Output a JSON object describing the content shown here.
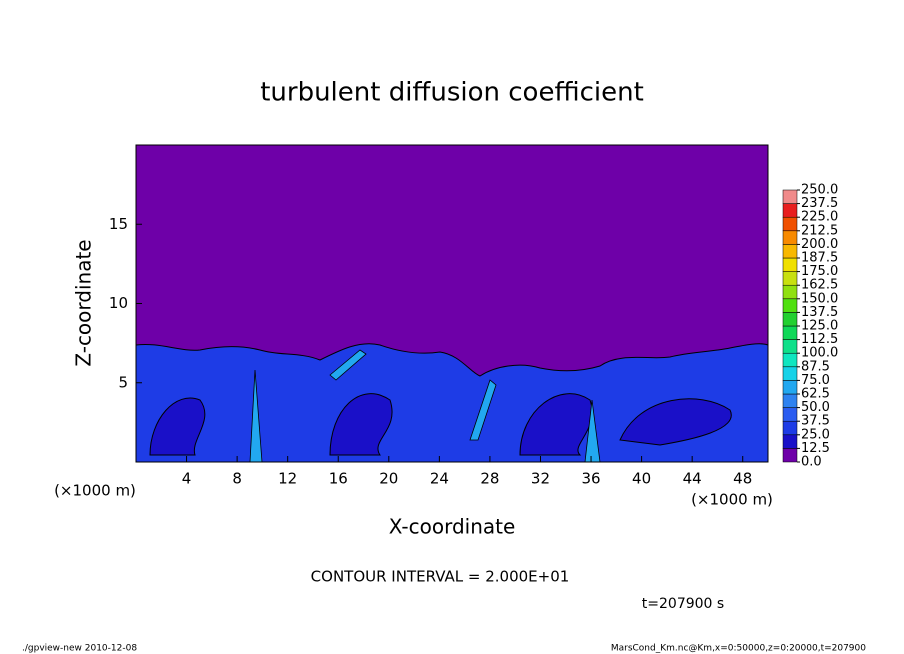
{
  "chart_data": {
    "type": "contour",
    "title": "turbulent diffusion coefficient",
    "x_label": "X-coordinate",
    "y_label": "Z-coordinate",
    "x_units": [
      "(×1000 m)",
      "(×1000 m)"
    ],
    "xlim": [
      0,
      50
    ],
    "xticks": [
      4,
      8,
      12,
      16,
      20,
      24,
      28,
      32,
      36,
      40,
      44,
      48
    ],
    "ylim": [
      0,
      20
    ],
    "yticks": [
      5,
      10,
      15
    ],
    "colorbar": {
      "levels": [
        {
          "value": 0,
          "label": "0.0"
        },
        {
          "value": 12.5,
          "label": "12.5"
        },
        {
          "value": 25,
          "label": "25.0"
        },
        {
          "value": 37.5,
          "label": "37.5"
        },
        {
          "value": 50,
          "label": "50.0"
        },
        {
          "value": 62.5,
          "label": "62.5"
        },
        {
          "value": 75,
          "label": "75.0"
        },
        {
          "value": 87.5,
          "label": "87.5"
        },
        {
          "value": 100,
          "label": "100.0"
        },
        {
          "value": 112.5,
          "label": "112.5"
        },
        {
          "value": 125,
          "label": "125.0"
        },
        {
          "value": 137.5,
          "label": "137.5"
        },
        {
          "value": 150,
          "label": "150.0"
        },
        {
          "value": 162.5,
          "label": "162.5"
        },
        {
          "value": 175,
          "label": "175.0"
        },
        {
          "value": 187.5,
          "label": "187.5"
        },
        {
          "value": 200,
          "label": "200.0"
        },
        {
          "value": 212.5,
          "label": "212.5"
        },
        {
          "value": 225,
          "label": "225.0"
        },
        {
          "value": 237.5,
          "label": "237.5"
        },
        {
          "value": 250,
          "label": "250.0"
        }
      ],
      "colors": [
        "#6e00a8",
        "#1a10c8",
        "#1e3ce6",
        "#2a5cf0",
        "#2e82f0",
        "#22a8f0",
        "#16d2e8",
        "#10e6c0",
        "#10e08a",
        "#10d858",
        "#22d030",
        "#50e010",
        "#90e010",
        "#c8e010",
        "#f0e000",
        "#f8b800",
        "#f88a00",
        "#f05000",
        "#e81e1e",
        "#f08a8a"
      ]
    },
    "contour_interval": "CONTOUR INTERVAL = 2.000E+01",
    "time": "t=207900 s",
    "footer_left": "./gpview-new  2010-12-08",
    "footer_right": "MarsCond_Km.nc@Km,x=0:50000,z=0:20000,t=207900"
  }
}
